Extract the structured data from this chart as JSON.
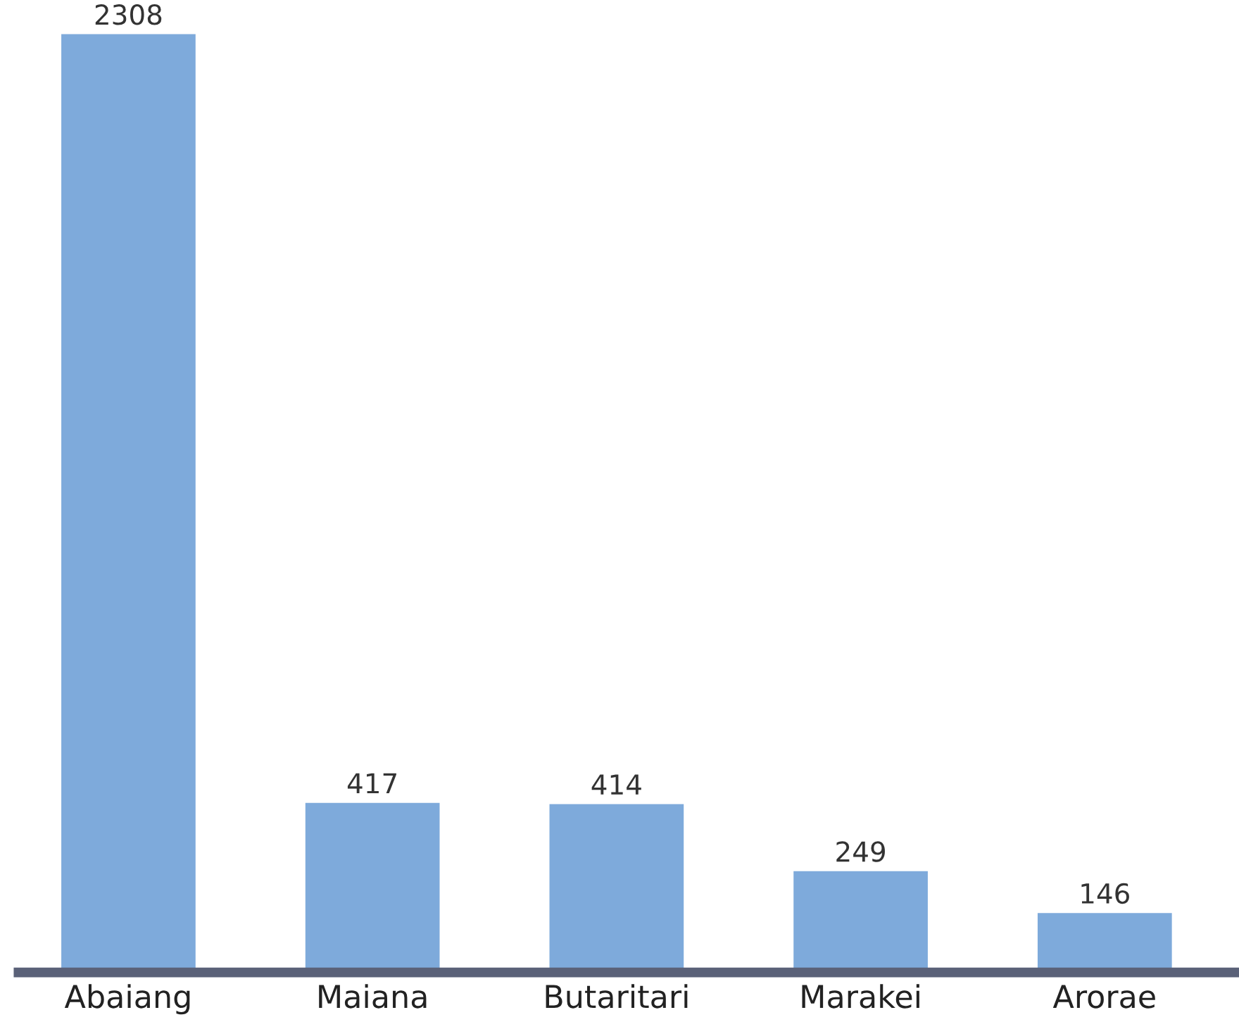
{
  "chart_data": {
    "type": "bar",
    "categories": [
      "Abaiang",
      "Maiana",
      "Butaritari",
      "Marakei",
      "Arorae"
    ],
    "values": [
      2308,
      417,
      414,
      249,
      146
    ],
    "color": "#7eaadb",
    "data_labels": true,
    "grid": false
  }
}
